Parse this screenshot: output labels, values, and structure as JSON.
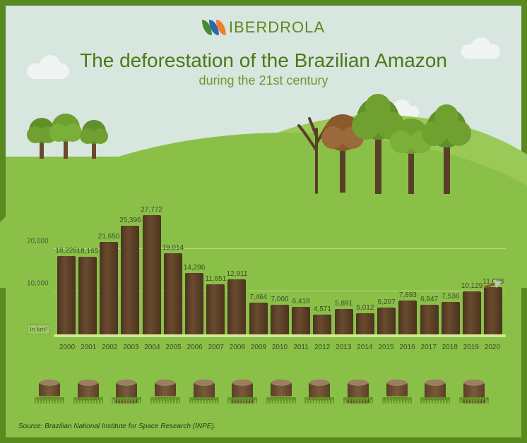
{
  "brand": {
    "name": "IBERDROLA",
    "leaf_colors": [
      "#4a8a2f",
      "#2a6aaa",
      "#f08030"
    ]
  },
  "title": "The deforestation of the Brazilian Amazon",
  "subtitle": "during the 21st century",
  "chart": {
    "type": "bar",
    "y_unit_label": "In km²",
    "y_ticks": [
      10000,
      20000
    ],
    "y_tick_labels": [
      "10,000",
      "20,000"
    ],
    "y_max": 28000,
    "bar_color": "#5a3f28",
    "grid_color": "#b8d880",
    "baseline_color": "#d8e890",
    "label_color": "#3a4a2a",
    "bar_label_fontsize": 10,
    "axis_label_fontsize": 10,
    "years": [
      "2000",
      "2001",
      "2002",
      "2003",
      "2004",
      "2005",
      "2006",
      "2007",
      "2008",
      "2009",
      "2010",
      "2011",
      "2012",
      "2013",
      "2014",
      "2015",
      "2016",
      "2017",
      "2018",
      "2019",
      "2020"
    ],
    "values": [
      18226,
      18165,
      21650,
      25396,
      27772,
      19014,
      14286,
      11651,
      12911,
      7464,
      7000,
      6418,
      4571,
      5891,
      5012,
      6207,
      7893,
      6947,
      7536,
      10129,
      11088
    ],
    "display_values": [
      "18,226",
      "18,165",
      "21,650",
      "25,396",
      "27,772",
      "19,014",
      "14,286",
      "11,651",
      "12,911",
      "7,464",
      "7,000",
      "6,418",
      "4,571",
      "5,891",
      "5,012",
      "6,207",
      "7,893",
      "6,947",
      "7,536",
      "10,129",
      "11,088"
    ],
    "axe_on_last_bar": true
  },
  "stumps_count": 12,
  "source": "Source: Brazilian National Institute for Space Research (INPE).",
  "colors": {
    "frame_border": "#5a8a1f",
    "sky": "#d8e6e0",
    "grass": "#8bc048",
    "grass_light": "#9ac957",
    "cloud": "#f0f5f2",
    "title": "#4a7a15",
    "subtitle": "#6b9a2f",
    "trunk": "#6b4a2e",
    "crown_dark": "#6fa030",
    "crown_light": "#8bc048"
  }
}
